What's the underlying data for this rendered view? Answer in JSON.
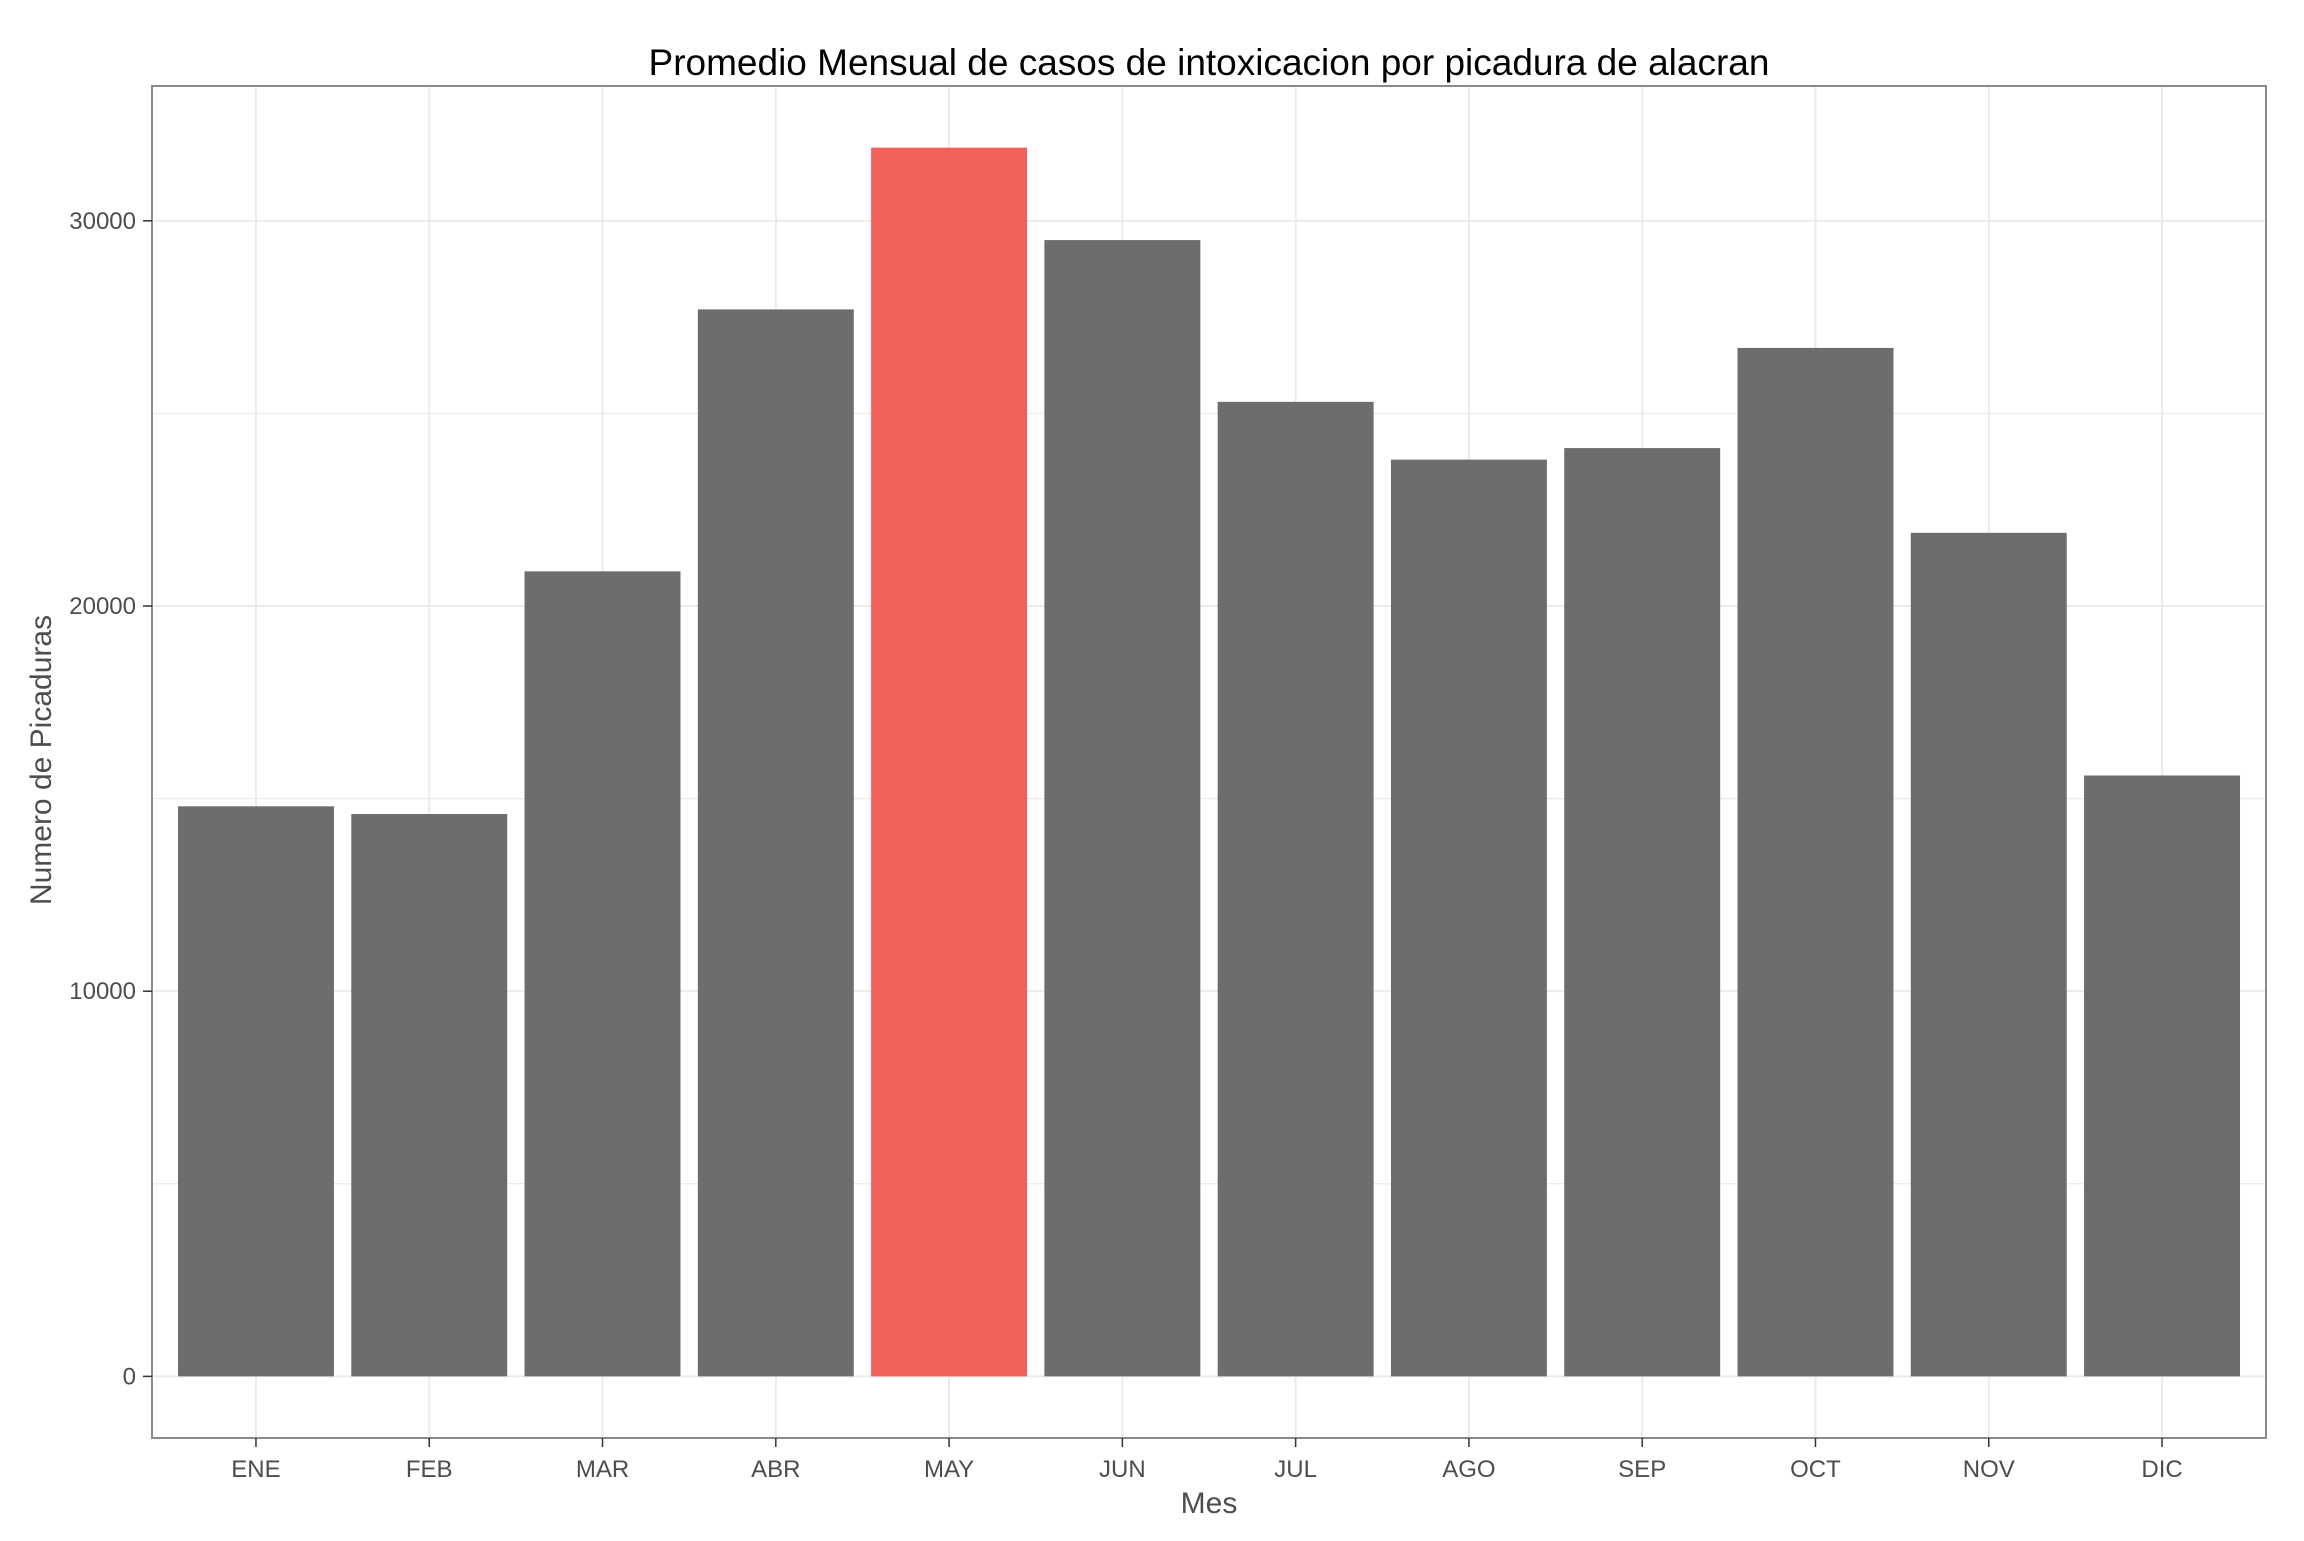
{
  "chart_data": {
    "type": "bar",
    "title": "Promedio Mensual de casos de intoxicacion por picadura de alacran",
    "xlabel": "Mes",
    "ylabel": "Numero de Picaduras",
    "categories": [
      "ENE",
      "FEB",
      "MAR",
      "ABR",
      "MAY",
      "JUN",
      "JUL",
      "AGO",
      "SEP",
      "OCT",
      "NOV",
      "DIC"
    ],
    "values": [
      14800,
      14600,
      20900,
      27700,
      31900,
      29500,
      25300,
      23800,
      24100,
      26700,
      21900,
      15600
    ],
    "highlight": "MAY",
    "ylim": [
      -1600,
      33500
    ],
    "yticks": [
      0,
      10000,
      20000,
      30000
    ],
    "ytick_labels": [
      "0",
      "10000",
      "20000",
      "30000"
    ],
    "grid": true,
    "colors": {
      "bar": "#6d6d6d",
      "highlight": "#f2605b",
      "grid": "#ebebeb",
      "panel_border": "#8a8a8a"
    }
  }
}
